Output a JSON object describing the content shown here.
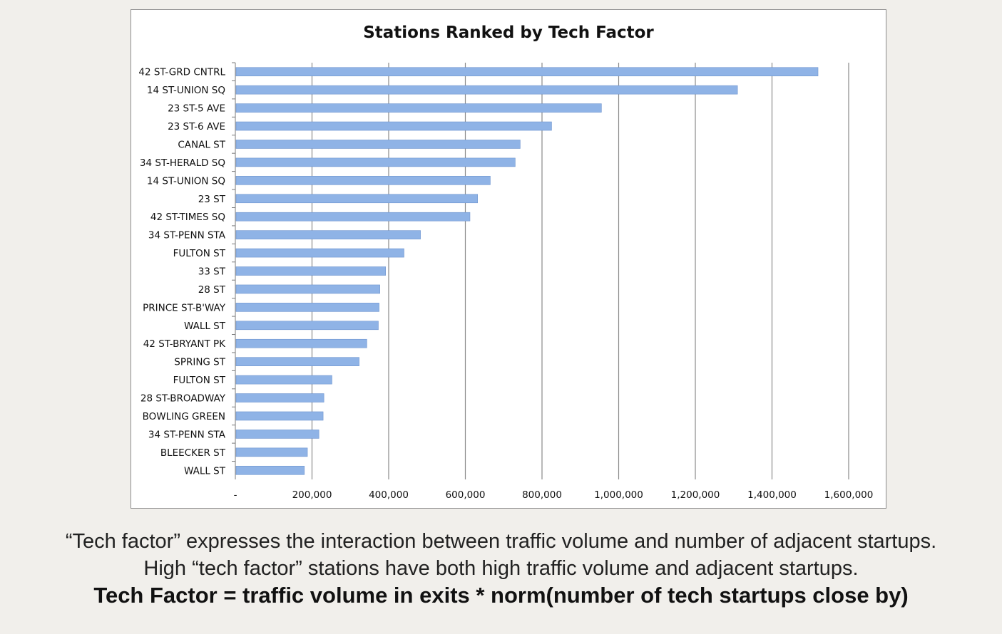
{
  "chart_data": {
    "type": "bar",
    "orientation": "horizontal",
    "title": "Stations Ranked by Tech Factor",
    "xlabel": "",
    "ylabel": "",
    "xlim": [
      0,
      1600000
    ],
    "x_ticks": [
      0,
      200000,
      400000,
      600000,
      800000,
      1000000,
      1200000,
      1400000,
      1600000
    ],
    "x_tick_labels": [
      "-",
      "200,000",
      "400,000",
      "600,000",
      "800,000",
      "1,000,000",
      "1,200,000",
      "1,400,000",
      "1,600,000"
    ],
    "grid": "vertical gridlines",
    "legend": "none",
    "bar_color": "#8fb3e6",
    "categories": [
      "42 ST-GRD CNTRL",
      "14 ST-UNION SQ",
      "23 ST-5 AVE",
      "23 ST-6 AVE",
      "CANAL ST",
      "34 ST-HERALD SQ",
      "14 ST-UNION SQ",
      "23 ST",
      "42 ST-TIMES SQ",
      "34 ST-PENN STA",
      "FULTON ST",
      "33 ST",
      "28 ST",
      "PRINCE ST-B'WAY",
      "WALL ST",
      "42 ST-BRYANT PK",
      "SPRING ST",
      "FULTON ST",
      "28 ST-BROADWAY",
      "BOWLING GREEN",
      "34 ST-PENN STA",
      "BLEECKER ST",
      "WALL ST"
    ],
    "values": [
      1520000,
      1310000,
      955000,
      825000,
      743000,
      730000,
      665000,
      632000,
      612000,
      483000,
      440000,
      392000,
      377000,
      375000,
      373000,
      343000,
      323000,
      252000,
      231000,
      229000,
      218000,
      188000,
      180000
    ]
  },
  "caption": {
    "line1": "“Tech factor” expresses the interaction between traffic volume and number of adjacent startups.",
    "line2": "High “tech factor” stations have both high traffic volume and adjacent startups.",
    "formula": "Tech Factor = traffic volume in exits * norm(number of tech startups close by)"
  }
}
